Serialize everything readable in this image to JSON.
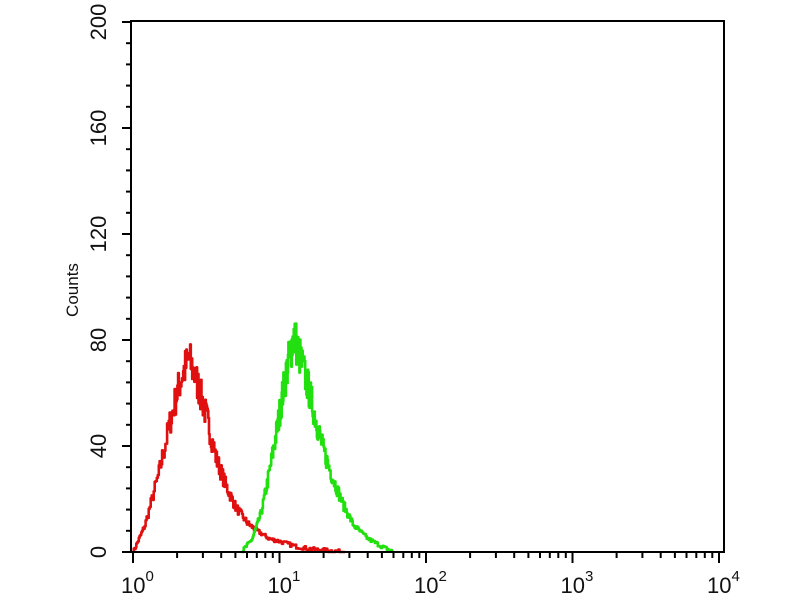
{
  "chart_data": {
    "type": "line",
    "title": "",
    "xlabel": "",
    "ylabel": "Counts",
    "xscale": "log",
    "xlim": [
      1,
      10000
    ],
    "ylim": [
      0,
      200
    ],
    "grid": false,
    "x_ticks": [
      {
        "base": "10",
        "exp": "0"
      },
      {
        "base": "10",
        "exp": "1"
      },
      {
        "base": "10",
        "exp": "2"
      },
      {
        "base": "10",
        "exp": "3"
      },
      {
        "base": "10",
        "exp": "4"
      }
    ],
    "y_ticks": [
      "0",
      "40",
      "80",
      "120",
      "160",
      "200"
    ],
    "series": [
      {
        "color": "#e01010",
        "x": [
          1.0,
          1.2,
          1.5,
          1.8,
          2.1,
          2.4,
          2.8,
          3.2,
          3.7,
          4.3,
          5.0,
          6.0,
          7.0,
          8.5,
          10,
          13,
          17,
          22,
          28
        ],
        "y": [
          0,
          10,
          30,
          50,
          65,
          73,
          62,
          50,
          35,
          25,
          17,
          11,
          8,
          5,
          4,
          2,
          1,
          0.5,
          0
        ]
      },
      {
        "color": "#22e010",
        "x": [
          5.5,
          6.5,
          7.5,
          8.5,
          9.5,
          10.5,
          11.5,
          12.5,
          14,
          16,
          18,
          20,
          23,
          27,
          32,
          40,
          50,
          60
        ],
        "y": [
          0,
          5,
          15,
          30,
          45,
          60,
          72,
          82,
          72,
          60,
          48,
          38,
          28,
          18,
          10,
          5,
          2,
          0
        ]
      }
    ]
  }
}
